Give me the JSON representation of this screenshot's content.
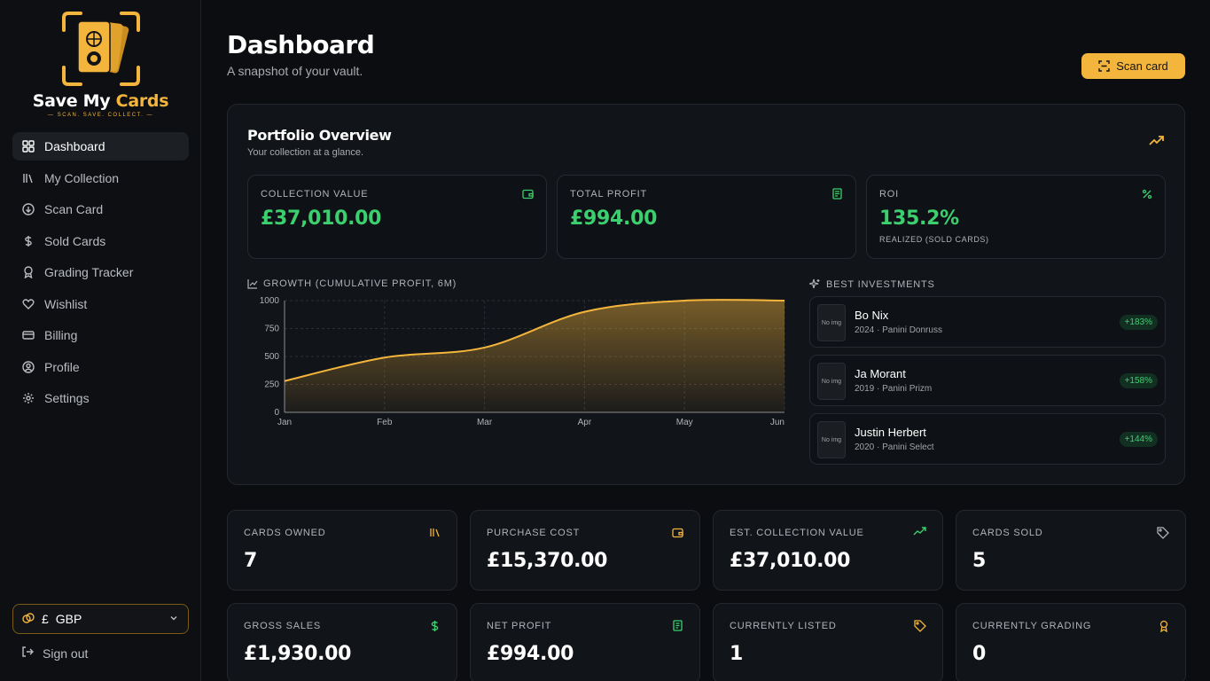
{
  "brand": {
    "name_part1": "Save My ",
    "name_part2": "Cards",
    "tagline": "SCAN. SAVE. COLLECT.",
    "accent_color": "#f4b53c"
  },
  "sidebar": {
    "items": [
      {
        "label": "Dashboard",
        "icon": "grid-icon",
        "active": true
      },
      {
        "label": "My Collection",
        "icon": "library-icon"
      },
      {
        "label": "Scan Card",
        "icon": "scan-circle-icon"
      },
      {
        "label": "Sold Cards",
        "icon": "dollar-icon"
      },
      {
        "label": "Grading Tracker",
        "icon": "award-icon"
      },
      {
        "label": "Wishlist",
        "icon": "heart-icon"
      },
      {
        "label": "Billing",
        "icon": "credit-card-icon"
      },
      {
        "label": "Profile",
        "icon": "user-circle-icon"
      },
      {
        "label": "Settings",
        "icon": "gear-icon"
      }
    ],
    "currency": {
      "symbol": "£",
      "code": "GBP"
    },
    "sign_out": "Sign out"
  },
  "header": {
    "title": "Dashboard",
    "subtitle": "A snapshot of your vault.",
    "scan_button": "Scan card"
  },
  "portfolio": {
    "title": "Portfolio Overview",
    "subtitle": "Your collection at a glance.",
    "stats": [
      {
        "label": "COLLECTION VALUE",
        "value": "£37,010.00",
        "icon": "wallet-icon"
      },
      {
        "label": "TOTAL PROFIT",
        "value": "£994.00",
        "icon": "receipt-icon"
      },
      {
        "label": "ROI",
        "value": "135.2%",
        "note": "REALIZED (SOLD CARDS)",
        "icon": "percent-icon"
      }
    ],
    "growth_title": "GROWTH (CUMULATIVE PROFIT, 6M)",
    "best_title": "BEST INVESTMENTS",
    "best": [
      {
        "thumb": "No img",
        "name": "Bo Nix",
        "meta": "2024 · Panini Donruss",
        "pct": "+183%"
      },
      {
        "thumb": "No img",
        "name": "Ja Morant",
        "meta": "2019 · Panini Prizm",
        "pct": "+158%"
      },
      {
        "thumb": "No img",
        "name": "Justin Herbert",
        "meta": "2020 · Panini Select",
        "pct": "+144%"
      }
    ]
  },
  "chart_data": {
    "type": "area",
    "categories": [
      "Jan",
      "Feb",
      "Mar",
      "Apr",
      "May",
      "Jun"
    ],
    "values": [
      280,
      490,
      580,
      900,
      1000,
      1000
    ],
    "y_ticks": [
      "0",
      "250",
      "500",
      "750",
      "1000"
    ],
    "ylim": [
      0,
      1000
    ],
    "color": "#f4b53c",
    "grid": true
  },
  "kpis": [
    {
      "label": "CARDS OWNED",
      "value": "7",
      "icon": "library-icon",
      "color": "#f4b53c"
    },
    {
      "label": "PURCHASE COST",
      "value": "£15,370.00",
      "icon": "wallet-icon",
      "color": "#f4b53c"
    },
    {
      "label": "EST. COLLECTION VALUE",
      "value": "£37,010.00",
      "icon": "trending-up-icon",
      "color": "#3ccf6e"
    },
    {
      "label": "CARDS SOLD",
      "value": "5",
      "icon": "tag-icon",
      "color": "#b0b3b8"
    },
    {
      "label": "GROSS SALES",
      "value": "£1,930.00",
      "icon": "dollar-icon",
      "color": "#3ccf6e"
    },
    {
      "label": "NET PROFIT",
      "value": "£994.00",
      "icon": "banknote-icon",
      "color": "#3ccf6e"
    },
    {
      "label": "CURRENTLY LISTED",
      "value": "1",
      "icon": "tag-icon",
      "color": "#f4b53c"
    },
    {
      "label": "CURRENTLY GRADING",
      "value": "0",
      "icon": "award-icon",
      "color": "#f4b53c"
    }
  ]
}
